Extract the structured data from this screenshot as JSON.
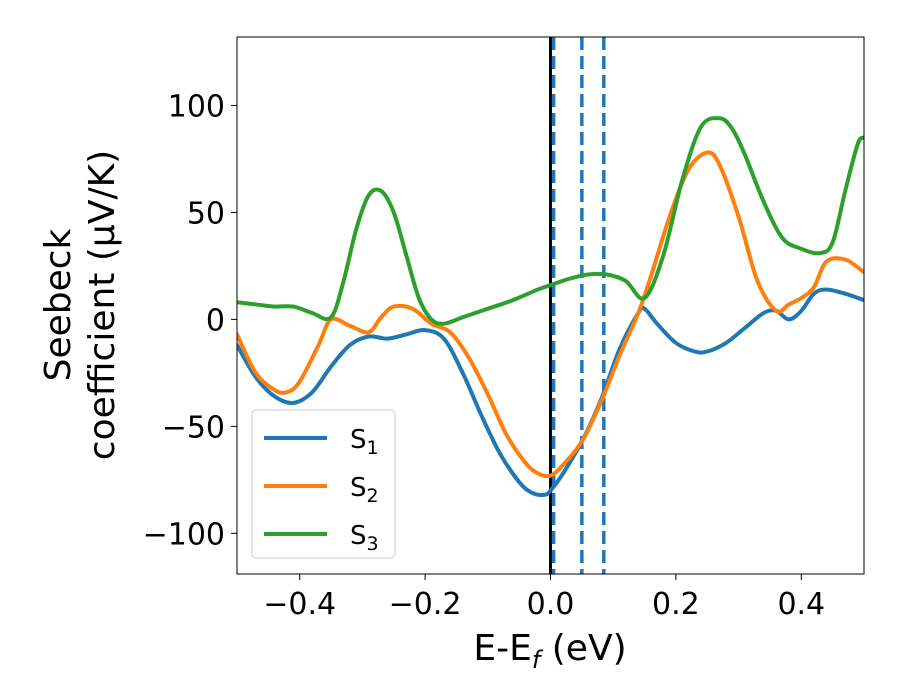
{
  "chart_data": {
    "type": "line",
    "xlabel": "E-E",
    "xlabel_sub": "f",
    "xlabel_unit": " (eV)",
    "ylabel_line1": "Seebeck",
    "ylabel_line2": "coefficient  (μV/K)",
    "xlim": [
      -0.5,
      0.5
    ],
    "ylim": [
      -119,
      132
    ],
    "xticks": [
      -0.4,
      -0.2,
      0.0,
      0.2,
      0.4
    ],
    "xtick_labels": [
      "−0.4",
      "−0.2",
      "0.0",
      "0.2",
      "0.4"
    ],
    "yticks": [
      -100,
      -50,
      0,
      50,
      100
    ],
    "ytick_labels": [
      "−100",
      "−50",
      "0",
      "50",
      "100"
    ],
    "grid": false,
    "legend_position": "bottom-left",
    "vlines": [
      {
        "x": 0.0,
        "style": "solid",
        "color": "#000000"
      },
      {
        "x": 0.005,
        "style": "dashed",
        "color": "#1f77b4"
      },
      {
        "x": 0.05,
        "style": "dashed",
        "color": "#1f77b4"
      },
      {
        "x": 0.085,
        "style": "dashed",
        "color": "#1f77b4"
      }
    ],
    "series": [
      {
        "name": "S",
        "sub": "1",
        "color": "#1f77b4",
        "x": [
          -0.5,
          -0.47,
          -0.44,
          -0.41,
          -0.38,
          -0.35,
          -0.32,
          -0.29,
          -0.26,
          -0.23,
          -0.2,
          -0.17,
          -0.14,
          -0.11,
          -0.08,
          -0.05,
          -0.03,
          -0.01,
          0.0,
          0.02,
          0.05,
          0.08,
          0.11,
          0.14,
          0.15,
          0.17,
          0.2,
          0.23,
          0.25,
          0.28,
          0.31,
          0.34,
          0.36,
          0.38,
          0.4,
          0.42,
          0.44,
          0.47,
          0.5
        ],
        "y": [
          -12,
          -27,
          -36,
          -39,
          -34,
          -22,
          -12,
          -8,
          -9,
          -7,
          -5,
          -9,
          -25,
          -45,
          -63,
          -76,
          -81,
          -82,
          -80,
          -72,
          -57,
          -38,
          -14,
          3,
          5,
          -2,
          -11,
          -15,
          -15,
          -11,
          -4,
          3,
          4,
          0,
          4,
          12,
          14,
          12,
          9
        ]
      },
      {
        "name": "S",
        "sub": "2",
        "color": "#ff7f0e",
        "x": [
          -0.5,
          -0.47,
          -0.44,
          -0.42,
          -0.4,
          -0.37,
          -0.35,
          -0.32,
          -0.29,
          -0.27,
          -0.25,
          -0.22,
          -0.19,
          -0.16,
          -0.13,
          -0.1,
          -0.07,
          -0.04,
          -0.02,
          0.0,
          0.02,
          0.05,
          0.08,
          0.11,
          0.14,
          0.16,
          0.19,
          0.22,
          0.25,
          0.27,
          0.3,
          0.33,
          0.36,
          0.38,
          0.4,
          0.42,
          0.44,
          0.47,
          0.5
        ],
        "y": [
          -7,
          -25,
          -33,
          -34,
          -29,
          -12,
          0,
          -3,
          -6,
          1,
          6,
          5,
          -2,
          -6,
          -18,
          -35,
          -54,
          -67,
          -72,
          -73,
          -68,
          -57,
          -39,
          -17,
          3,
          20,
          48,
          70,
          78,
          72,
          48,
          18,
          4,
          7,
          10,
          15,
          27,
          28,
          22
        ]
      },
      {
        "name": "S",
        "sub": "3",
        "color": "#2ca02c",
        "x": [
          -0.5,
          -0.47,
          -0.44,
          -0.41,
          -0.38,
          -0.35,
          -0.33,
          -0.31,
          -0.29,
          -0.27,
          -0.25,
          -0.23,
          -0.21,
          -0.19,
          -0.17,
          -0.14,
          -0.1,
          -0.06,
          -0.02,
          0.0,
          0.03,
          0.06,
          0.09,
          0.12,
          0.15,
          0.18,
          0.21,
          0.24,
          0.27,
          0.29,
          0.31,
          0.34,
          0.37,
          0.4,
          0.43,
          0.45,
          0.47,
          0.49,
          0.5
        ],
        "y": [
          8,
          7,
          6,
          6,
          3,
          1,
          18,
          42,
          58,
          60,
          50,
          30,
          10,
          0,
          -2,
          1,
          5,
          9,
          14,
          16,
          19,
          21,
          21,
          18,
          10,
          30,
          65,
          90,
          94,
          89,
          77,
          55,
          38,
          33,
          31,
          36,
          60,
          82,
          85
        ]
      }
    ]
  }
}
